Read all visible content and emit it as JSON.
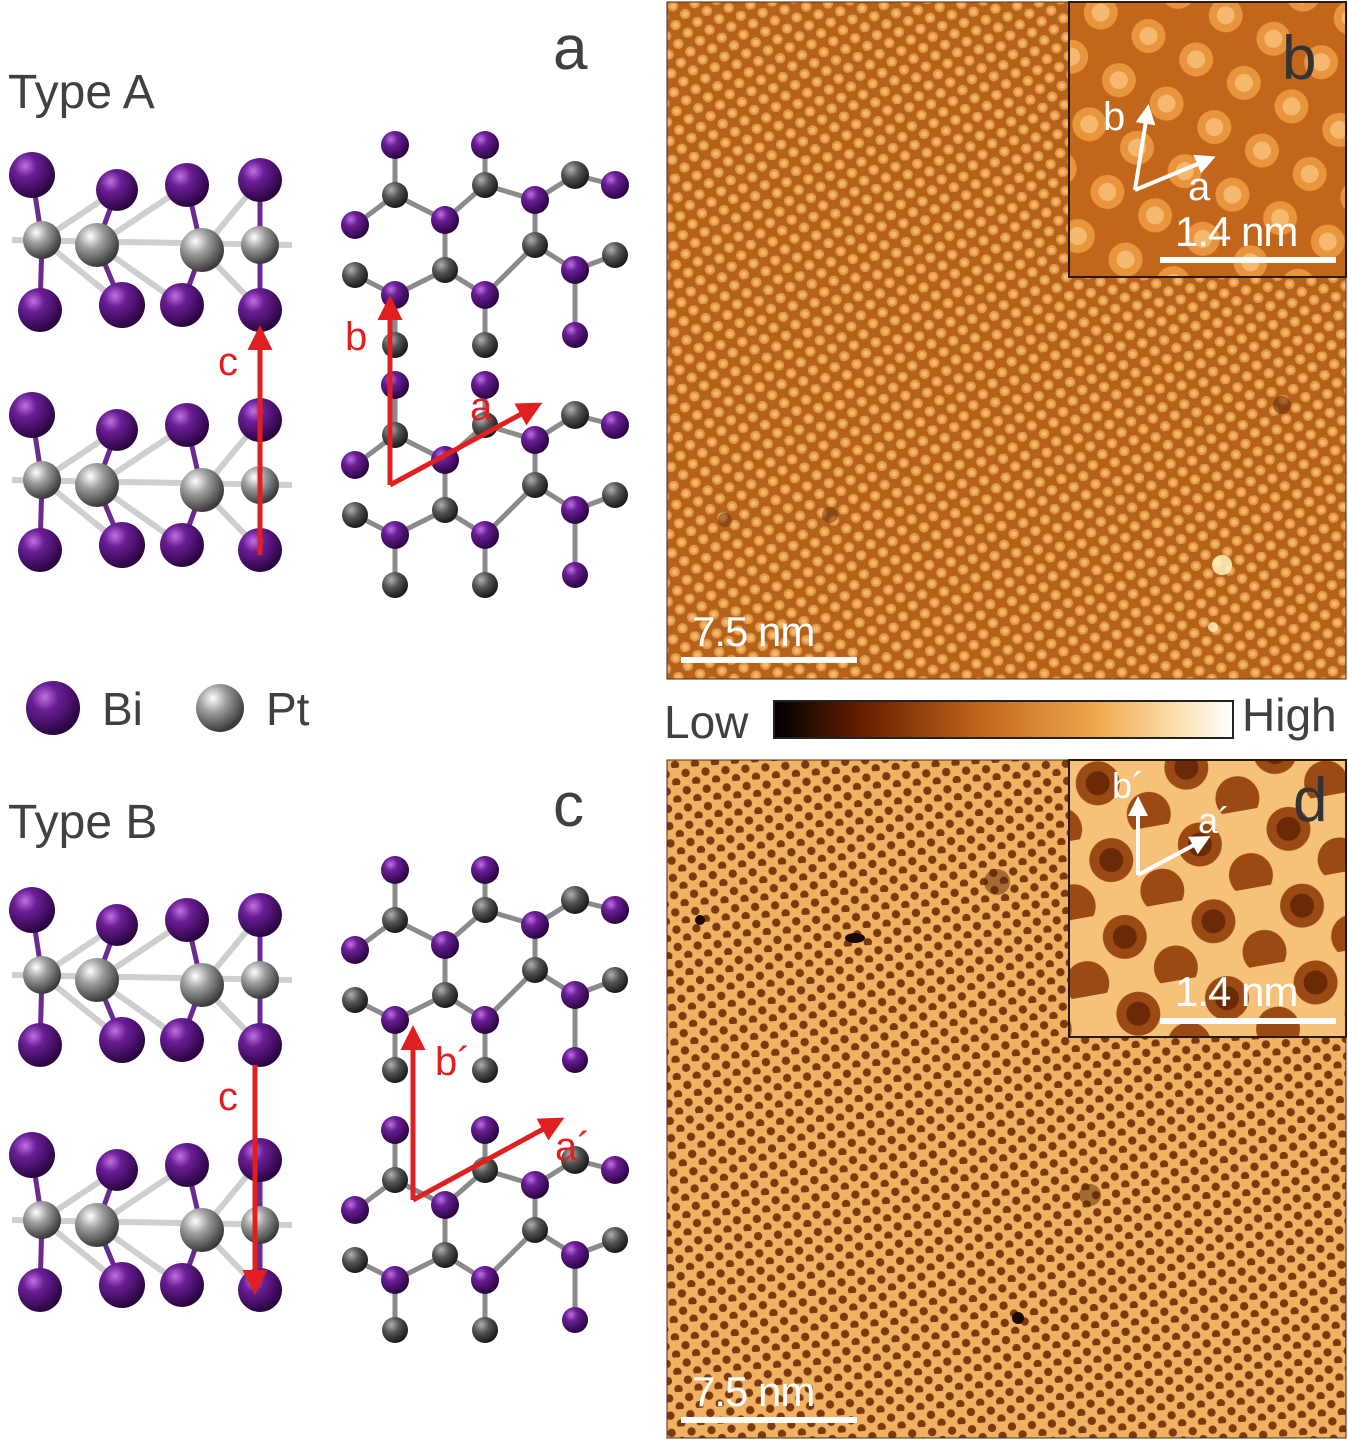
{
  "panel_a": {
    "type_label": "Type A",
    "panel_letter": "a",
    "vectors": {
      "c": "c",
      "b": "b",
      "a": "a"
    }
  },
  "panel_c": {
    "type_label": "Type B",
    "panel_letter": "c",
    "vectors": {
      "c": "c",
      "b": "b´",
      "a": "a´"
    }
  },
  "legend": {
    "bi": "Bi",
    "pt": "Pt"
  },
  "panel_b": {
    "panel_letter": "b",
    "inset_vectors": {
      "b": "b",
      "a": "a"
    },
    "inset_scale": "1.4 nm",
    "scale": "7.5 nm"
  },
  "panel_d": {
    "panel_letter": "d",
    "inset_vectors": {
      "b": "b´",
      "a": "a´"
    },
    "inset_scale": "1.4 nm",
    "scale": "7.5 nm"
  },
  "colorbar": {
    "low": "Low",
    "high": "High"
  },
  "colors": {
    "bi": "#5a1880",
    "pt": "#8a8a8a",
    "vector": "#e02020",
    "stm_base": "#c8731e"
  }
}
